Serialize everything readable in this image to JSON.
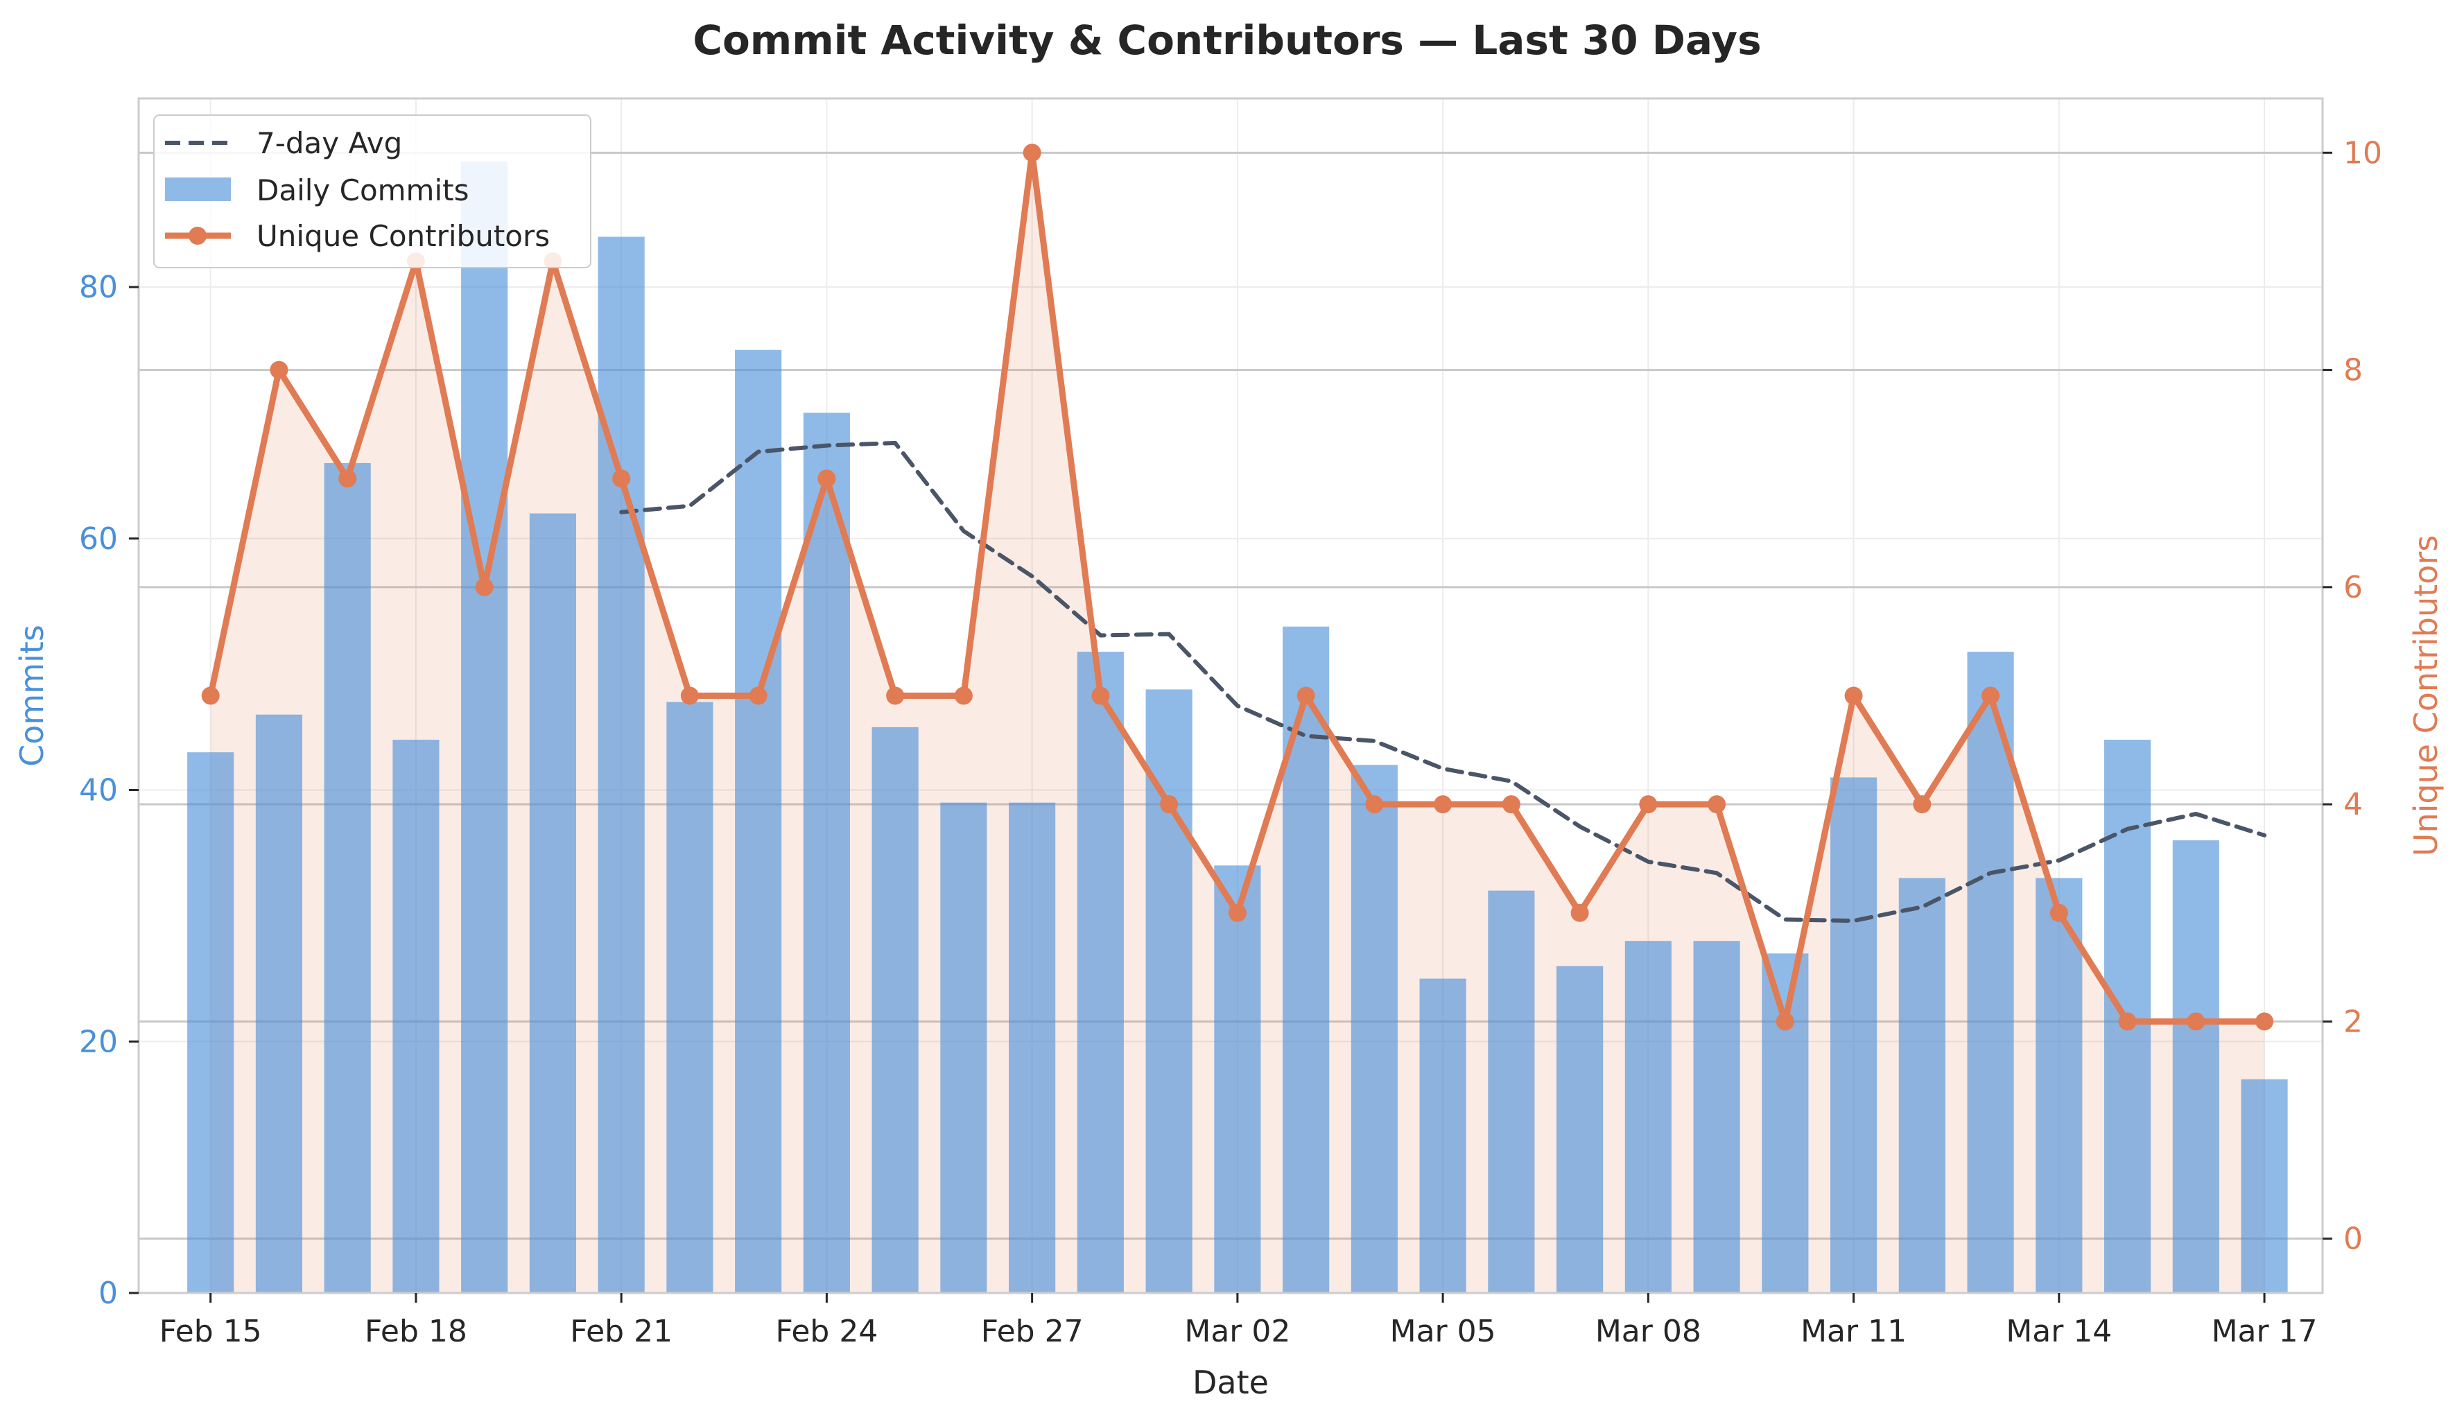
{
  "chart_data": {
    "type": "bar",
    "title": "Commit Activity & Contributors — Last 30 Days",
    "xlabel": "Date",
    "ylabel": "Commits",
    "ylabel_right": "Unique Contributors",
    "ylim": [
      0,
      95
    ],
    "ylim_right": [
      -0.5,
      10.5
    ],
    "yticks": [
      0,
      20,
      40,
      60,
      80
    ],
    "yticks_right": [
      0,
      2,
      4,
      6,
      8,
      10
    ],
    "grid": true,
    "legend_position": "top-left",
    "categories": [
      "2025-02-15",
      "2025-02-16",
      "2025-02-17",
      "2025-02-18",
      "2025-02-19",
      "2025-02-20",
      "2025-02-21",
      "2025-02-22",
      "2025-02-23",
      "2025-02-24",
      "2025-02-25",
      "2025-02-26",
      "2025-02-27",
      "2025-02-28",
      "2025-03-01",
      "2025-03-02",
      "2025-03-03",
      "2025-03-04",
      "2025-03-05",
      "2025-03-06",
      "2025-03-07",
      "2025-03-08",
      "2025-03-09",
      "2025-03-10",
      "2025-03-11",
      "2025-03-12",
      "2025-03-13",
      "2025-03-14",
      "2025-03-15",
      "2025-03-16",
      "2025-03-17"
    ],
    "xtick_labels": [
      {
        "index": 0,
        "label": "Feb 15"
      },
      {
        "index": 3,
        "label": "Feb 18"
      },
      {
        "index": 6,
        "label": "Feb 21"
      },
      {
        "index": 9,
        "label": "Feb 24"
      },
      {
        "index": 12,
        "label": "Feb 27"
      },
      {
        "index": 15,
        "label": "Mar 02"
      },
      {
        "index": 18,
        "label": "Mar 05"
      },
      {
        "index": 21,
        "label": "Mar 08"
      },
      {
        "index": 24,
        "label": "Mar 11"
      },
      {
        "index": 27,
        "label": "Mar 14"
      },
      {
        "index": 30,
        "label": "Mar 17"
      }
    ],
    "series": [
      {
        "name": "Daily Commits",
        "kind": "bar",
        "axis": "left",
        "color": "#4a90d9",
        "values": [
          43,
          46,
          66,
          44,
          90,
          62,
          84,
          47,
          75,
          70,
          45,
          39,
          39,
          51,
          48,
          34,
          53,
          42,
          25,
          32,
          26,
          28,
          28,
          27,
          41,
          33,
          51,
          33,
          44,
          36,
          17
        ]
      },
      {
        "name": "7-day Avg",
        "kind": "line-dashed",
        "axis": "left",
        "color": "#4a5568",
        "values": [
          null,
          null,
          null,
          null,
          null,
          null,
          62.1,
          62.6,
          66.9,
          67.4,
          67.6,
          60.6,
          57.0,
          52.3,
          52.4,
          46.7,
          44.3,
          43.9,
          41.7,
          40.7,
          37.1,
          34.3,
          33.4,
          29.7,
          29.6,
          30.7,
          33.4,
          34.4,
          36.9,
          38.1,
          36.4
        ]
      },
      {
        "name": "Unique Contributors",
        "kind": "line-markers",
        "axis": "right",
        "color": "#e07b53",
        "fill": true,
        "values": [
          5,
          8,
          7,
          9,
          6,
          9,
          7,
          5,
          5,
          7,
          5,
          5,
          10,
          5,
          4,
          3,
          5,
          4,
          4,
          4,
          3,
          4,
          4,
          2,
          5,
          4,
          5,
          3,
          2,
          2,
          2
        ]
      }
    ]
  }
}
